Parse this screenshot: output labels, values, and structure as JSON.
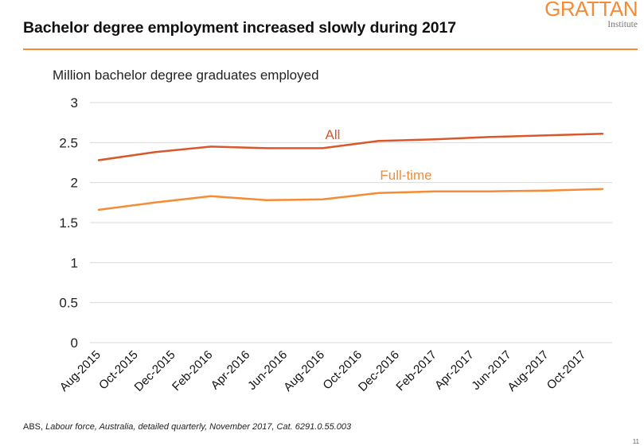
{
  "header": {
    "title": "Bachelor degree employment increased slowly during 2017",
    "logo_main": "GRATTAN",
    "logo_sub": "Institute"
  },
  "colors": {
    "accent": "#F68B33",
    "all_series": "#D9572A",
    "fulltime_series": "#F68B33",
    "gridline": "#D9D9D9"
  },
  "chart_data": {
    "type": "line",
    "title": "Bachelor degree employment increased slowly during 2017",
    "ylabel": "Million bachelor degree graduates employed",
    "xlabel": "",
    "ylim": [
      0,
      3
    ],
    "yticks": [
      "0",
      "0.5",
      "1",
      "1.5",
      "2",
      "2.5",
      "3"
    ],
    "grid": true,
    "legend": "inline labels",
    "xtick_labels": [
      "Aug-2015",
      "Oct-2015",
      "Dec-2015",
      "Feb-2016",
      "Apr-2016",
      "Jun-2016",
      "Aug-2016",
      "Oct-2016",
      "Dec-2016",
      "Feb-2017",
      "Apr-2017",
      "Jun-2017",
      "Aug-2017",
      "Oct-2017"
    ],
    "x": [
      "Aug-2015",
      "Nov-2015",
      "Feb-2016",
      "May-2016",
      "Aug-2016",
      "Nov-2016",
      "Feb-2017",
      "May-2017",
      "Aug-2017",
      "Nov-2017"
    ],
    "series": [
      {
        "name": "All",
        "values": [
          2.28,
          2.38,
          2.45,
          2.43,
          2.43,
          2.52,
          2.54,
          2.57,
          2.59,
          2.61
        ]
      },
      {
        "name": "Full-time",
        "values": [
          1.66,
          1.75,
          1.83,
          1.78,
          1.79,
          1.87,
          1.89,
          1.89,
          1.9,
          1.92
        ]
      }
    ]
  },
  "footer": {
    "source_prefix": "ABS, ",
    "source_italic": "Labour force, Australia, detailed quarterly, November 2017, Cat. 6291.0.55.003",
    "page_number": "11"
  }
}
